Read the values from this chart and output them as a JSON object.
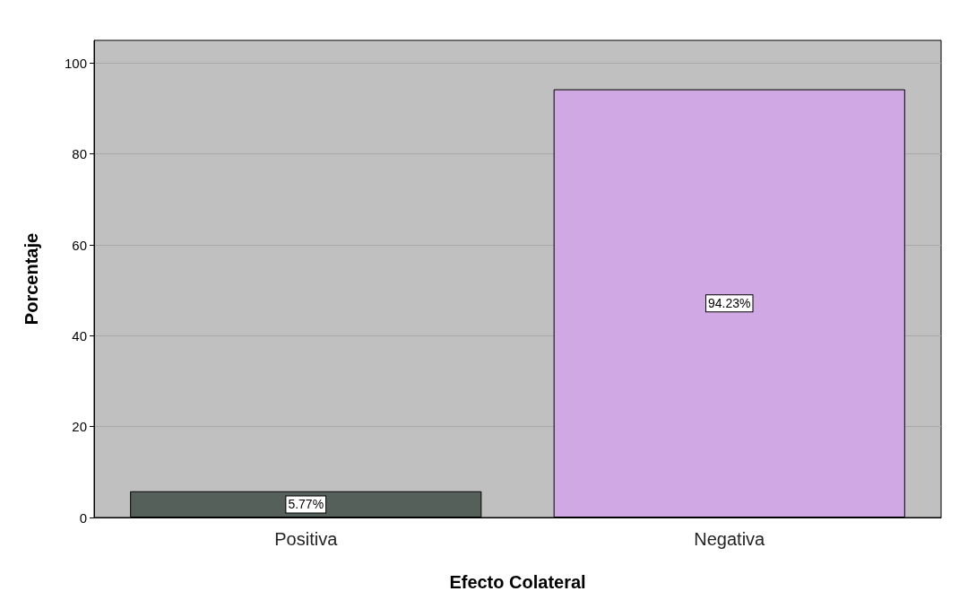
{
  "chart_data": {
    "type": "bar",
    "xlabel": "Efecto Colateral",
    "ylabel": "Porcentaje",
    "categories": [
      "Positiva",
      "Negativa"
    ],
    "values": [
      5.77,
      94.23
    ],
    "colors": [
      "#55605a",
      "#d0a8e4"
    ],
    "value_labels": [
      "5.77%",
      "94.23%"
    ],
    "ylim": [
      0,
      105
    ],
    "yticks": [
      0,
      20,
      40,
      60,
      80,
      100
    ],
    "grid": "y"
  }
}
